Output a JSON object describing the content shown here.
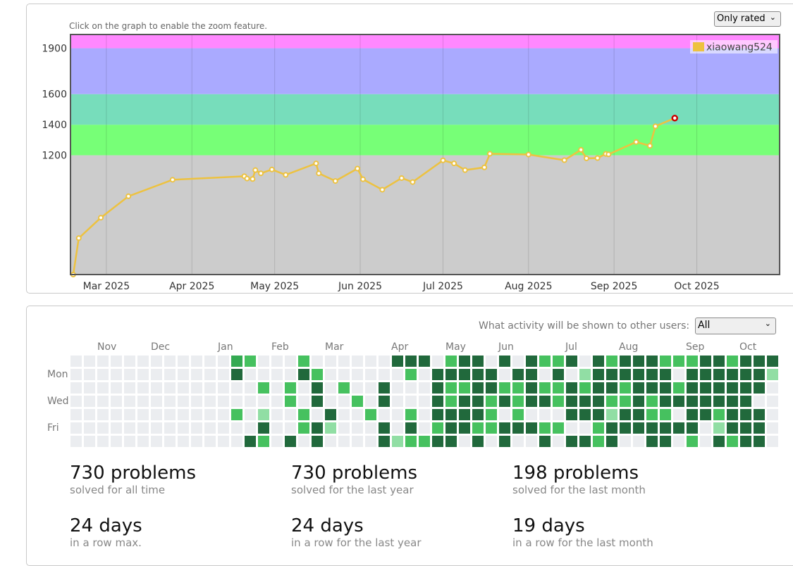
{
  "rating_panel": {
    "hint": "Click on the graph to enable the zoom feature.",
    "filter": "Only rated"
  },
  "chart_data": {
    "type": "line",
    "title": "",
    "xlabel": "",
    "ylabel": "",
    "series": [
      {
        "name": "xiaowang524",
        "color": "#edc240",
        "points": [
          {
            "x": "2025-02-17",
            "y": 420
          },
          {
            "x": "2025-02-19",
            "y": 658
          },
          {
            "x": "2025-02-27",
            "y": 792
          },
          {
            "x": "2025-03-09",
            "y": 932
          },
          {
            "x": "2025-03-25",
            "y": 1040
          },
          {
            "x": "2025-04-20",
            "y": 1063
          },
          {
            "x": "2025-04-21",
            "y": 1048
          },
          {
            "x": "2025-04-23",
            "y": 1045
          },
          {
            "x": "2025-04-24",
            "y": 1103
          },
          {
            "x": "2025-04-26",
            "y": 1082
          },
          {
            "x": "2025-04-30",
            "y": 1107
          },
          {
            "x": "2025-05-05",
            "y": 1072
          },
          {
            "x": "2025-05-16",
            "y": 1147
          },
          {
            "x": "2025-05-17",
            "y": 1082
          },
          {
            "x": "2025-05-23",
            "y": 1032
          },
          {
            "x": "2025-05-31",
            "y": 1113
          },
          {
            "x": "2025-06-02",
            "y": 1043
          },
          {
            "x": "2025-06-09",
            "y": 975
          },
          {
            "x": "2025-06-16",
            "y": 1051
          },
          {
            "x": "2025-06-20",
            "y": 1025
          },
          {
            "x": "2025-07-01",
            "y": 1167
          },
          {
            "x": "2025-07-05",
            "y": 1147
          },
          {
            "x": "2025-07-09",
            "y": 1103
          },
          {
            "x": "2025-07-16",
            "y": 1121
          },
          {
            "x": "2025-07-18",
            "y": 1210
          },
          {
            "x": "2025-08-01",
            "y": 1205
          },
          {
            "x": "2025-08-14",
            "y": 1168
          },
          {
            "x": "2025-08-20",
            "y": 1236
          },
          {
            "x": "2025-08-22",
            "y": 1180
          },
          {
            "x": "2025-08-26",
            "y": 1182
          },
          {
            "x": "2025-08-29",
            "y": 1209
          },
          {
            "x": "2025-08-30",
            "y": 1206
          },
          {
            "x": "2025-09-09",
            "y": 1287
          },
          {
            "x": "2025-09-14",
            "y": 1262
          },
          {
            "x": "2025-09-16",
            "y": 1390
          },
          {
            "x": "2025-09-23",
            "y": 1443
          }
        ]
      }
    ],
    "xlim": [
      "2025-02-16",
      "2025-10-31"
    ],
    "ylim": [
      420,
      1990
    ],
    "ytick_labels": [
      "1200",
      "1400",
      "1600",
      "1900"
    ],
    "xtick_labels": [
      "Mar 2025",
      "Apr 2025",
      "May 2025",
      "Jun 2025",
      "Jul 2025",
      "Aug 2025",
      "Sep 2025",
      "Oct 2025"
    ],
    "bands": [
      {
        "from": 420,
        "to": 1200,
        "color": "#cccccc"
      },
      {
        "from": 1200,
        "to": 1400,
        "color": "#77ff77"
      },
      {
        "from": 1400,
        "to": 1600,
        "color": "#77ddbb"
      },
      {
        "from": 1600,
        "to": 1900,
        "color": "#aaaaff"
      },
      {
        "from": 1900,
        "to": 1990,
        "color": "#ff88ff"
      }
    ],
    "legend": "top-right",
    "grid": true
  },
  "activity": {
    "visibility_label": "What activity will be shown to other users:",
    "visibility_value": "All",
    "months": [
      "Nov",
      "Dec",
      "Jan",
      "Feb",
      "Mar",
      "Apr",
      "May",
      "Jun",
      "Jul",
      "Aug",
      "Sep",
      "Oct"
    ],
    "days": [
      "Mon",
      "Wed",
      "Fri"
    ],
    "heatmap_levels": [
      [
        0,
        0,
        0,
        0,
        0,
        0,
        0,
        0,
        0,
        0,
        0,
        0,
        3,
        2,
        0,
        0,
        0,
        2,
        0,
        0,
        0,
        0,
        0,
        0,
        4,
        4,
        4,
        0,
        2,
        4,
        4,
        0,
        4,
        0,
        4,
        2,
        2,
        4,
        0,
        4,
        2,
        4,
        4,
        4,
        2,
        2,
        2,
        4,
        4,
        2,
        4,
        4,
        4
      ],
      [
        0,
        0,
        0,
        0,
        0,
        0,
        0,
        0,
        0,
        0,
        0,
        0,
        4,
        0,
        0,
        0,
        0,
        4,
        2,
        0,
        0,
        0,
        0,
        0,
        0,
        2,
        0,
        4,
        4,
        4,
        4,
        4,
        0,
        4,
        4,
        0,
        4,
        0,
        1,
        4,
        4,
        4,
        4,
        4,
        4,
        0,
        4,
        4,
        4,
        4,
        4,
        4,
        1
      ],
      [
        0,
        0,
        0,
        0,
        0,
        0,
        0,
        0,
        0,
        0,
        0,
        0,
        0,
        0,
        2,
        0,
        2,
        0,
        4,
        0,
        2,
        0,
        0,
        4,
        0,
        0,
        0,
        4,
        2,
        2,
        4,
        4,
        2,
        2,
        4,
        2,
        2,
        4,
        2,
        4,
        4,
        2,
        4,
        4,
        4,
        2,
        4,
        4,
        4,
        4,
        4,
        4,
        0
      ],
      [
        0,
        0,
        0,
        0,
        0,
        0,
        0,
        0,
        0,
        0,
        0,
        0,
        0,
        0,
        0,
        0,
        2,
        0,
        4,
        0,
        0,
        2,
        0,
        4,
        0,
        0,
        0,
        4,
        2,
        4,
        4,
        2,
        4,
        2,
        4,
        4,
        2,
        4,
        4,
        4,
        2,
        2,
        4,
        2,
        4,
        4,
        4,
        4,
        4,
        4,
        4,
        0,
        0
      ],
      [
        0,
        0,
        0,
        0,
        0,
        0,
        0,
        0,
        0,
        0,
        0,
        0,
        2,
        0,
        1,
        0,
        0,
        2,
        0,
        4,
        0,
        0,
        2,
        0,
        0,
        2,
        0,
        4,
        4,
        4,
        4,
        2,
        0,
        2,
        0,
        0,
        0,
        4,
        4,
        4,
        1,
        4,
        4,
        2,
        2,
        0,
        4,
        4,
        2,
        4,
        4,
        4,
        0
      ],
      [
        0,
        0,
        0,
        0,
        0,
        0,
        0,
        0,
        0,
        0,
        0,
        0,
        0,
        0,
        4,
        0,
        0,
        2,
        4,
        1,
        0,
        0,
        0,
        4,
        0,
        4,
        0,
        2,
        4,
        4,
        2,
        2,
        4,
        4,
        4,
        2,
        2,
        0,
        0,
        2,
        4,
        4,
        4,
        4,
        4,
        4,
        4,
        0,
        1,
        4,
        4,
        4,
        0
      ],
      [
        0,
        0,
        0,
        0,
        0,
        0,
        0,
        0,
        0,
        0,
        0,
        0,
        0,
        4,
        2,
        0,
        4,
        0,
        4,
        0,
        0,
        0,
        0,
        4,
        1,
        2,
        2,
        4,
        4,
        0,
        4,
        0,
        4,
        0,
        0,
        4,
        0,
        4,
        4,
        2,
        4,
        0,
        0,
        4,
        4,
        0,
        2,
        0,
        4,
        2,
        4,
        4,
        0
      ]
    ],
    "level_colors": [
      "#ebedf0",
      "#91dea4",
      "#46c15f",
      "#34aa52",
      "#21693c"
    ]
  },
  "stats": [
    {
      "value": "730 problems",
      "caption": "solved for all time"
    },
    {
      "value": "730 problems",
      "caption": "solved for the last year"
    },
    {
      "value": "198 problems",
      "caption": "solved for the last month"
    },
    {
      "value": "24 days",
      "caption": "in a row max."
    },
    {
      "value": "24 days",
      "caption": "in a row for the last year"
    },
    {
      "value": "19 days",
      "caption": "in a row for the last month"
    }
  ]
}
